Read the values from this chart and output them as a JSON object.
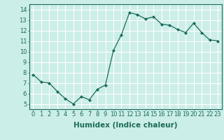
{
  "x": [
    0,
    1,
    2,
    3,
    4,
    5,
    6,
    7,
    8,
    9,
    10,
    11,
    12,
    13,
    14,
    15,
    16,
    17,
    18,
    19,
    20,
    21,
    22,
    23
  ],
  "y": [
    7.8,
    7.1,
    7.0,
    6.2,
    5.5,
    5.0,
    5.7,
    5.4,
    6.4,
    6.8,
    10.1,
    11.6,
    13.7,
    13.5,
    13.1,
    13.3,
    12.6,
    12.5,
    12.1,
    11.8,
    12.7,
    11.8,
    11.1,
    11.0
  ],
  "line_color": "#1a6b5a",
  "marker": "D",
  "marker_size": 2.0,
  "bg_color": "#cceee8",
  "grid_color": "#ffffff",
  "xlabel": "Humidex (Indice chaleur)",
  "xlim": [
    -0.5,
    23.5
  ],
  "ylim": [
    4.5,
    14.5
  ],
  "yticks": [
    5,
    6,
    7,
    8,
    9,
    10,
    11,
    12,
    13,
    14
  ],
  "xticks": [
    0,
    1,
    2,
    3,
    4,
    5,
    6,
    7,
    8,
    9,
    10,
    11,
    12,
    13,
    14,
    15,
    16,
    17,
    18,
    19,
    20,
    21,
    22,
    23
  ],
  "tick_fontsize": 6.0,
  "label_fontsize": 7.5
}
